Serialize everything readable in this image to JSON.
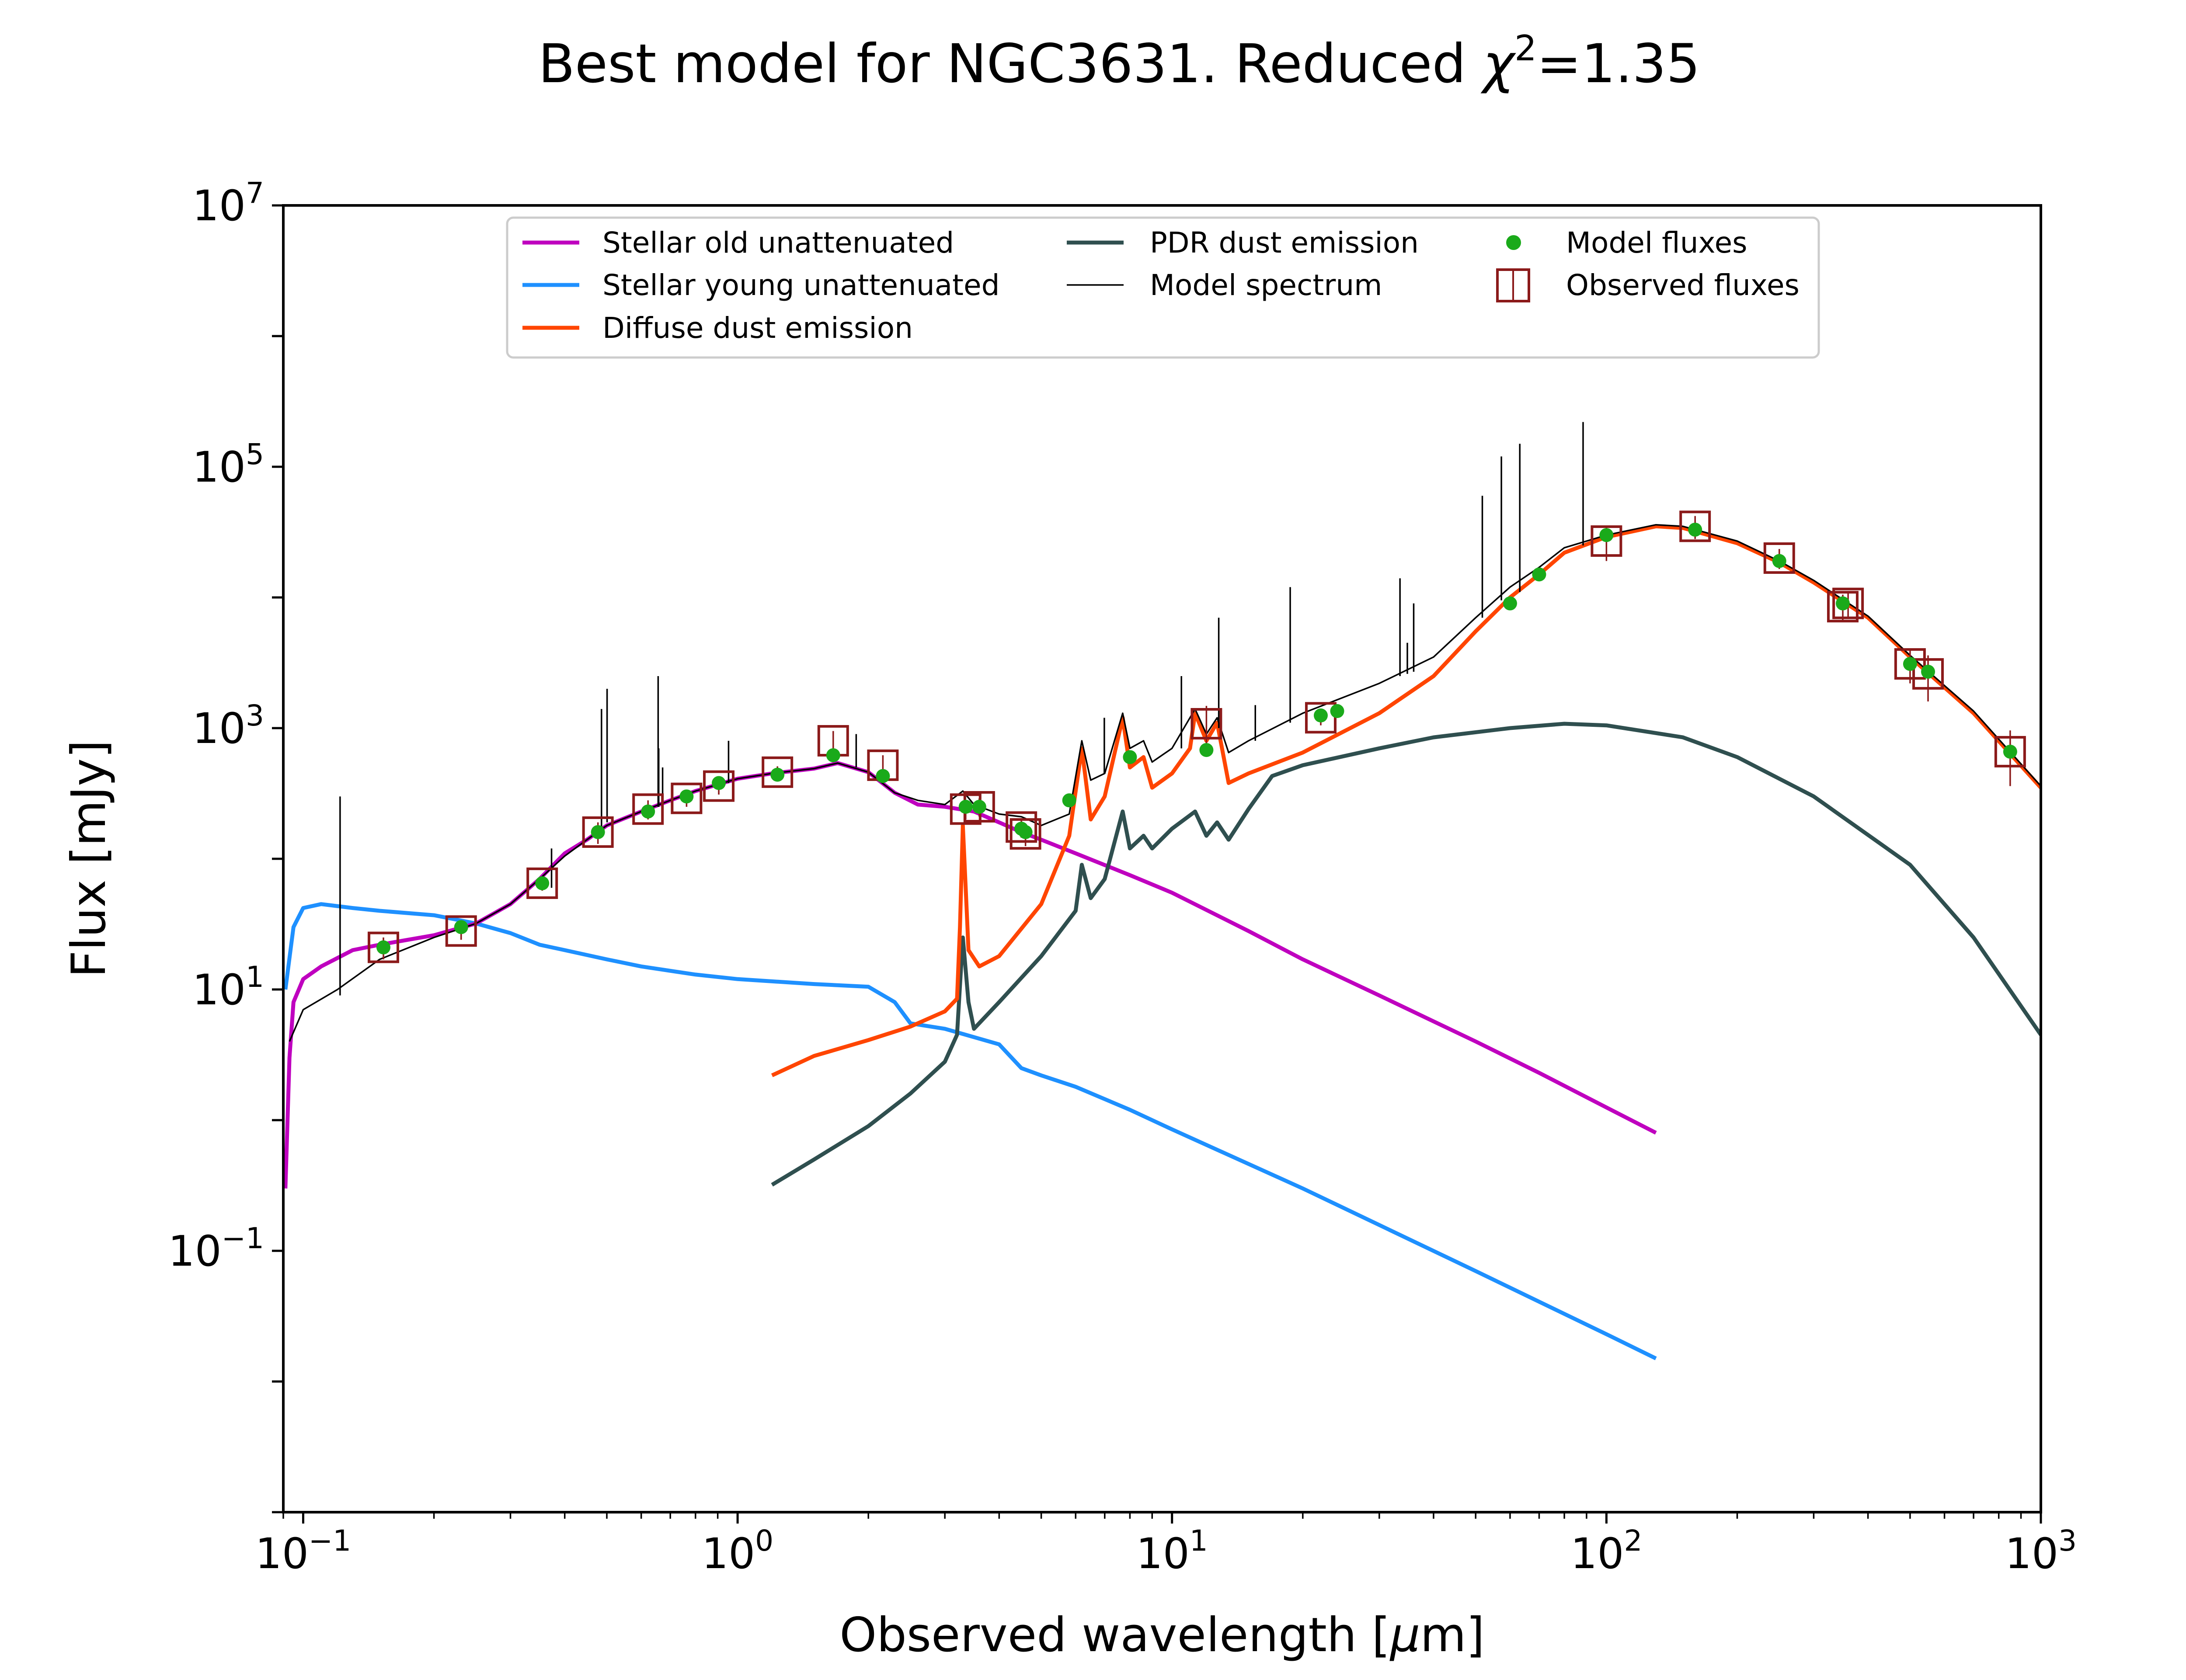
{
  "chart_data": {
    "type": "line",
    "title": "Best model for NGC3631. Reduced χ²=1.35",
    "title_parts": {
      "prefix": "Best model for NGC3631. Reduced ",
      "symbol": "χ",
      "sup": "2",
      "suffix": "=1.35"
    },
    "xlabel": "Observed wavelength [μm]",
    "xlabel_parts": {
      "prefix": "Observed wavelength [",
      "symbol": "μ",
      "suffix": "m]"
    },
    "ylabel": "Flux [mJy]",
    "x_scale": "log",
    "y_scale": "log",
    "xlim": [
      0.09,
      1000
    ],
    "ylim": [
      0.001,
      10000000
    ],
    "x_ticks": [
      {
        "base": "10",
        "exp": "−1",
        "value": 0.1
      },
      {
        "base": "10",
        "exp": "0",
        "value": 1
      },
      {
        "base": "10",
        "exp": "1",
        "value": 10
      },
      {
        "base": "10",
        "exp": "2",
        "value": 100
      },
      {
        "base": "10",
        "exp": "3",
        "value": 1000
      }
    ],
    "y_ticks": [
      {
        "base": "10",
        "exp": "−1",
        "value": 0.1
      },
      {
        "base": "10",
        "exp": "1",
        "value": 10
      },
      {
        "base": "10",
        "exp": "3",
        "value": 1000
      },
      {
        "base": "10",
        "exp": "5",
        "value": 100000
      },
      {
        "base": "10",
        "exp": "7",
        "value": 10000000
      }
    ],
    "grid": false,
    "legend_position": "top-center",
    "series": [
      {
        "name": "Stellar old unattenuated",
        "kind": "line",
        "color": "#bf00bf",
        "points": [
          [
            0.091,
            0.3
          ],
          [
            0.093,
            3
          ],
          [
            0.095,
            8
          ],
          [
            0.1,
            12
          ],
          [
            0.11,
            15
          ],
          [
            0.13,
            20
          ],
          [
            0.15,
            22
          ],
          [
            0.2,
            26
          ],
          [
            0.25,
            32
          ],
          [
            0.3,
            45
          ],
          [
            0.35,
            70
          ],
          [
            0.4,
            110
          ],
          [
            0.45,
            140
          ],
          [
            0.5,
            180
          ],
          [
            0.6,
            230
          ],
          [
            0.7,
            280
          ],
          [
            0.8,
            330
          ],
          [
            0.9,
            370
          ],
          [
            1.0,
            410
          ],
          [
            1.2,
            450
          ],
          [
            1.5,
            490
          ],
          [
            1.7,
            540
          ],
          [
            2.0,
            460
          ],
          [
            2.3,
            320
          ],
          [
            2.6,
            260
          ],
          [
            3.0,
            250
          ],
          [
            3.5,
            230
          ],
          [
            4.0,
            190
          ],
          [
            4.5,
            160
          ],
          [
            5,
            140
          ],
          [
            6,
            110
          ],
          [
            8,
            75
          ],
          [
            10,
            55
          ],
          [
            15,
            28
          ],
          [
            20,
            17
          ],
          [
            30,
            9
          ],
          [
            50,
            4
          ],
          [
            70,
            2.3
          ],
          [
            100,
            1.25
          ],
          [
            130,
            0.8
          ]
        ]
      },
      {
        "name": "Stellar young unattenuated",
        "kind": "line",
        "color": "#1e90ff",
        "points": [
          [
            0.091,
            10
          ],
          [
            0.095,
            30
          ],
          [
            0.1,
            42
          ],
          [
            0.11,
            45
          ],
          [
            0.13,
            42
          ],
          [
            0.15,
            40
          ],
          [
            0.2,
            37
          ],
          [
            0.25,
            32
          ],
          [
            0.3,
            27
          ],
          [
            0.35,
            22
          ],
          [
            0.4,
            20
          ],
          [
            0.5,
            17
          ],
          [
            0.6,
            15
          ],
          [
            0.8,
            13
          ],
          [
            1.0,
            12
          ],
          [
            1.5,
            11
          ],
          [
            2.0,
            10.5
          ],
          [
            2.3,
            8
          ],
          [
            2.5,
            5.5
          ],
          [
            3,
            5
          ],
          [
            4,
            3.8
          ],
          [
            4.5,
            2.5
          ],
          [
            5,
            2.2
          ],
          [
            6,
            1.8
          ],
          [
            8,
            1.2
          ],
          [
            10,
            0.85
          ],
          [
            20,
            0.3
          ],
          [
            50,
            0.07
          ],
          [
            100,
            0.023
          ],
          [
            130,
            0.015
          ]
        ]
      },
      {
        "name": "Diffuse dust emission",
        "kind": "line",
        "color": "#ff4500",
        "points": [
          [
            1.2,
            2.2
          ],
          [
            1.5,
            3.1
          ],
          [
            2.0,
            4.1
          ],
          [
            2.5,
            5.2
          ],
          [
            3.0,
            6.8
          ],
          [
            3.2,
            8.5
          ],
          [
            3.25,
            30
          ],
          [
            3.3,
            180
          ],
          [
            3.35,
            60
          ],
          [
            3.4,
            20
          ],
          [
            3.6,
            15
          ],
          [
            4.0,
            18
          ],
          [
            5,
            45
          ],
          [
            5.8,
            150
          ],
          [
            6.2,
            700
          ],
          [
            6.5,
            200
          ],
          [
            7.0,
            300
          ],
          [
            7.7,
            1200
          ],
          [
            8.0,
            500
          ],
          [
            8.6,
            600
          ],
          [
            9.0,
            350
          ],
          [
            10,
            450
          ],
          [
            11.0,
            700
          ],
          [
            11.3,
            1300
          ],
          [
            12.0,
            800
          ],
          [
            12.7,
            1100
          ],
          [
            13.5,
            380
          ],
          [
            15,
            450
          ],
          [
            20,
            650
          ],
          [
            30,
            1300
          ],
          [
            40,
            2500
          ],
          [
            50,
            5500
          ],
          [
            60,
            10000
          ],
          [
            70,
            15000
          ],
          [
            80,
            22000
          ],
          [
            100,
            29000
          ],
          [
            130,
            35000
          ],
          [
            150,
            34000
          ],
          [
            200,
            26000
          ],
          [
            250,
            18500
          ],
          [
            300,
            13000
          ],
          [
            400,
            7000
          ],
          [
            500,
            3500
          ],
          [
            700,
            1300
          ],
          [
            1000,
            350
          ]
        ]
      },
      {
        "name": "PDR dust emission",
        "kind": "line",
        "color": "#2f4f4f",
        "points": [
          [
            1.2,
            0.32
          ],
          [
            1.5,
            0.5
          ],
          [
            2.0,
            0.9
          ],
          [
            2.5,
            1.6
          ],
          [
            3.0,
            2.8
          ],
          [
            3.2,
            4.5
          ],
          [
            3.3,
            25
          ],
          [
            3.4,
            8
          ],
          [
            3.5,
            5
          ],
          [
            4.0,
            8
          ],
          [
            5,
            18
          ],
          [
            6.0,
            40
          ],
          [
            6.2,
            90
          ],
          [
            6.5,
            50
          ],
          [
            7.0,
            70
          ],
          [
            7.7,
            230
          ],
          [
            8.0,
            120
          ],
          [
            8.6,
            150
          ],
          [
            9.0,
            120
          ],
          [
            10,
            170
          ],
          [
            11.3,
            230
          ],
          [
            12,
            150
          ],
          [
            12.7,
            190
          ],
          [
            13.5,
            140
          ],
          [
            15,
            240
          ],
          [
            17,
            430
          ],
          [
            20,
            520
          ],
          [
            30,
            700
          ],
          [
            40,
            850
          ],
          [
            60,
            1000
          ],
          [
            80,
            1080
          ],
          [
            100,
            1050
          ],
          [
            150,
            850
          ],
          [
            200,
            600
          ],
          [
            300,
            300
          ],
          [
            500,
            90
          ],
          [
            700,
            25
          ],
          [
            1000,
            4.5
          ]
        ]
      },
      {
        "name": "Model spectrum",
        "kind": "line",
        "color": "#000000",
        "points": [
          [
            0.093,
            4
          ],
          [
            0.1,
            7
          ],
          [
            0.12,
            10
          ],
          [
            0.15,
            17
          ],
          [
            0.2,
            25
          ],
          [
            0.25,
            32
          ],
          [
            0.3,
            45
          ],
          [
            0.35,
            70
          ],
          [
            0.4,
            105
          ],
          [
            0.45,
            140
          ],
          [
            0.5,
            180
          ],
          [
            0.6,
            230
          ],
          [
            0.7,
            280
          ],
          [
            0.8,
            330
          ],
          [
            0.9,
            370
          ],
          [
            1.0,
            410
          ],
          [
            1.2,
            450
          ],
          [
            1.5,
            490
          ],
          [
            1.7,
            540
          ],
          [
            2.0,
            460
          ],
          [
            2.3,
            320
          ],
          [
            2.6,
            280
          ],
          [
            3.0,
            260
          ],
          [
            3.3,
            330
          ],
          [
            3.5,
            260
          ],
          [
            4.0,
            220
          ],
          [
            4.5,
            210
          ],
          [
            5.0,
            180
          ],
          [
            5.8,
            220
          ],
          [
            6.2,
            800
          ],
          [
            6.5,
            400
          ],
          [
            7.0,
            450
          ],
          [
            7.7,
            1300
          ],
          [
            8.0,
            700
          ],
          [
            8.6,
            800
          ],
          [
            9.0,
            550
          ],
          [
            10,
            700
          ],
          [
            11.3,
            1400
          ],
          [
            12,
            900
          ],
          [
            12.7,
            1200
          ],
          [
            13.5,
            650
          ],
          [
            15,
            800
          ],
          [
            20,
            1300
          ],
          [
            30,
            2200
          ],
          [
            40,
            3500
          ],
          [
            50,
            7000
          ],
          [
            60,
            12000
          ],
          [
            70,
            17000
          ],
          [
            80,
            24000
          ],
          [
            100,
            30000
          ],
          [
            130,
            36000
          ],
          [
            150,
            35000
          ],
          [
            200,
            27000
          ],
          [
            250,
            19000
          ],
          [
            300,
            13500
          ],
          [
            400,
            7200
          ],
          [
            500,
            3600
          ],
          [
            700,
            1350
          ],
          [
            1000,
            360
          ]
        ]
      }
    ],
    "emission_lines": [
      {
        "x": 0.1216,
        "y_base": 9,
        "y_top": 300
      },
      {
        "x": 0.373,
        "y_base": 60,
        "y_top": 120
      },
      {
        "x": 0.4861,
        "y_base": 170,
        "y_top": 1400
      },
      {
        "x": 0.5007,
        "y_base": 190,
        "y_top": 2000
      },
      {
        "x": 0.6563,
        "y_base": 250,
        "y_top": 2500
      },
      {
        "x": 0.6583,
        "y_base": 250,
        "y_top": 700
      },
      {
        "x": 0.672,
        "y_base": 270,
        "y_top": 500
      },
      {
        "x": 0.9532,
        "y_base": 380,
        "y_top": 800
      },
      {
        "x": 1.875,
        "y_base": 500,
        "y_top": 900
      },
      {
        "x": 6.985,
        "y_base": 450,
        "y_top": 1200
      },
      {
        "x": 10.51,
        "y_base": 700,
        "y_top": 2500
      },
      {
        "x": 12.81,
        "y_base": 1000,
        "y_top": 7000
      },
      {
        "x": 15.55,
        "y_base": 800,
        "y_top": 1500
      },
      {
        "x": 18.71,
        "y_base": 1100,
        "y_top": 12000
      },
      {
        "x": 33.48,
        "y_base": 2500,
        "y_top": 14000
      },
      {
        "x": 34.81,
        "y_base": 2600,
        "y_top": 4500
      },
      {
        "x": 36.0,
        "y_base": 2700,
        "y_top": 9000
      },
      {
        "x": 51.8,
        "y_base": 7000,
        "y_top": 60000
      },
      {
        "x": 57.3,
        "y_base": 9500,
        "y_top": 120000
      },
      {
        "x": 63.18,
        "y_base": 11000,
        "y_top": 150000
      },
      {
        "x": 88.36,
        "y_base": 25000,
        "y_top": 220000
      }
    ],
    "model_fluxes": {
      "name": "Model fluxes",
      "color": "#1aaa1a",
      "points": [
        [
          0.153,
          21
        ],
        [
          0.231,
          30
        ],
        [
          0.355,
          65
        ],
        [
          0.477,
          160
        ],
        [
          0.622,
          230
        ],
        [
          0.763,
          300
        ],
        [
          0.905,
          380
        ],
        [
          1.235,
          440
        ],
        [
          1.66,
          620
        ],
        [
          2.16,
          430
        ],
        [
          3.35,
          250
        ],
        [
          3.6,
          250
        ],
        [
          4.5,
          170
        ],
        [
          4.6,
          160
        ],
        [
          5.8,
          280
        ],
        [
          8.0,
          600
        ],
        [
          12.0,
          680
        ],
        [
          22.0,
          1250
        ],
        [
          24.0,
          1350
        ],
        [
          60.0,
          9000
        ],
        [
          70.0,
          15000
        ],
        [
          100.0,
          30000
        ],
        [
          160.0,
          33000
        ],
        [
          250.0,
          19000
        ],
        [
          350.0,
          9000
        ],
        [
          500.0,
          3100
        ],
        [
          550.0,
          2700
        ],
        [
          850.0,
          660
        ]
      ]
    },
    "observed_fluxes": {
      "name": "Observed fluxes",
      "color": "#8b1a1a",
      "points": [
        [
          0.153,
          21,
          4
        ],
        [
          0.231,
          28,
          4
        ],
        [
          0.355,
          65,
          8
        ],
        [
          0.477,
          160,
          30
        ],
        [
          0.622,
          240,
          40
        ],
        [
          0.763,
          290,
          40
        ],
        [
          0.905,
          360,
          50
        ],
        [
          1.235,
          460,
          50
        ],
        [
          1.66,
          800,
          150
        ],
        [
          2.16,
          520,
          100
        ],
        [
          3.35,
          240,
          40
        ],
        [
          3.6,
          250,
          40
        ],
        [
          4.5,
          175,
          30
        ],
        [
          4.6,
          155,
          30
        ],
        [
          12.0,
          1080,
          400
        ],
        [
          22.0,
          1200,
          150
        ],
        [
          100.0,
          27000,
          8000
        ],
        [
          160.0,
          35000,
          7000
        ],
        [
          250.0,
          20000,
          3500
        ],
        [
          350.0,
          8500,
          2000
        ],
        [
          360.0,
          9000,
          2000
        ],
        [
          500.0,
          3100,
          900
        ],
        [
          550.0,
          2600,
          1000
        ],
        [
          850.0,
          660,
          300
        ]
      ]
    }
  }
}
